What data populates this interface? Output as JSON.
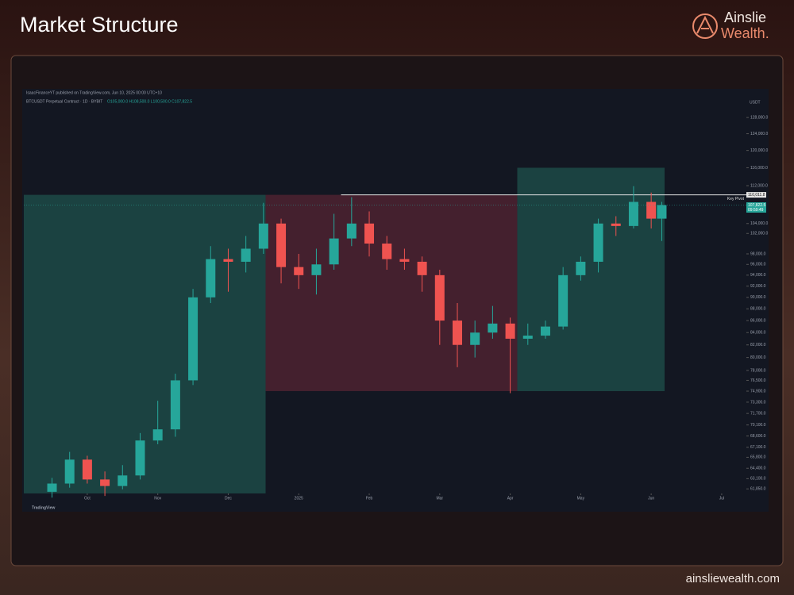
{
  "header": {
    "title": "Market Structure",
    "brand": [
      "Ainslie",
      "Wealth."
    ],
    "footer": "ainsliewealth.com"
  },
  "chart_data": {
    "type": "candlestick",
    "publisher": "IsaacFinanceYT published on TradingView.com, Jun 10, 2025 00:00 UTC+10",
    "symbol": "BTCUSDT Perpetual Contract · 1D · BYBIT",
    "ohlc_line": "O105,000.0 H108,500.0 L100,500.0 C107,822.5",
    "currency": "USDT",
    "watermark": "TradingView",
    "x": [
      0.5,
      0.75,
      1,
      1.25,
      1.5,
      1.75,
      2,
      2.25,
      2.5,
      2.75,
      3,
      3.25,
      3.5,
      3.75,
      4,
      4.25,
      4.5,
      4.75,
      5,
      5.25,
      5.5,
      5.75,
      6,
      6.25,
      6.5,
      6.75,
      7,
      7.25,
      7.5,
      7.75,
      8,
      8.25,
      8.5,
      8.75,
      9,
      9.15
    ],
    "open": [
      61500,
      62500,
      65500,
      63000,
      62200,
      63500,
      68000,
      69500,
      76500,
      90000,
      97000,
      96500,
      99000,
      104000,
      95500,
      94000,
      96000,
      101000,
      104000,
      100000,
      97000,
      96500,
      94000,
      86000,
      82000,
      84000,
      85500,
      83000,
      83500,
      85000,
      94000,
      96500,
      104000,
      103500,
      108500,
      105000
    ],
    "high": [
      63200,
      66500,
      66000,
      64000,
      64800,
      69000,
      73500,
      77500,
      91500,
      99500,
      99000,
      101500,
      108300,
      105000,
      98000,
      99000,
      106000,
      109500,
      106500,
      101500,
      99000,
      97500,
      95000,
      89000,
      86000,
      88500,
      86500,
      85500,
      86000,
      95500,
      97500,
      105000,
      105500,
      111900,
      110500,
      108500
    ],
    "low": [
      60800,
      62000,
      62500,
      61000,
      61800,
      63000,
      67500,
      68500,
      75800,
      89000,
      91000,
      94500,
      98000,
      92500,
      91500,
      90500,
      95000,
      99500,
      97500,
      95000,
      95000,
      91000,
      82000,
      78500,
      80000,
      83000,
      74600,
      82000,
      83000,
      84500,
      93000,
      94500,
      101500,
      103000,
      103000,
      100500
    ],
    "close": [
      62500,
      65500,
      63000,
      62200,
      63500,
      68000,
      69500,
      76500,
      90000,
      97000,
      96500,
      99000,
      104000,
      95500,
      94000,
      96000,
      101000,
      104000,
      100000,
      97000,
      96500,
      94000,
      86000,
      82000,
      84000,
      85500,
      83000,
      83500,
      85000,
      94000,
      96500,
      104000,
      103500,
      108500,
      105000,
      107822.5
    ],
    "up_color": "#26a69a",
    "down_color": "#ef5350",
    "xlim": [
      0.1,
      10.35
    ],
    "xticks": [
      {
        "value": 1,
        "label": "Oct"
      },
      {
        "value": 2,
        "label": "Nov"
      },
      {
        "value": 3,
        "label": "Dec"
      },
      {
        "value": 4,
        "label": "2025"
      },
      {
        "value": 5,
        "label": "Feb"
      },
      {
        "value": 6,
        "label": "Mar"
      },
      {
        "value": 7,
        "label": "Apr"
      },
      {
        "value": 8,
        "label": "May"
      },
      {
        "value": 9,
        "label": "Jun"
      },
      {
        "value": 10,
        "label": "Jul"
      }
    ],
    "ylim": [
      61300,
      133300
    ],
    "log_scale": true,
    "yticks": [
      {
        "value": 128000,
        "label": "128,000.0"
      },
      {
        "value": 124000,
        "label": "124,000.0"
      },
      {
        "value": 120000,
        "label": "120,000.0"
      },
      {
        "value": 116000,
        "label": "116,000.0"
      },
      {
        "value": 112000,
        "label": "112,000.0"
      },
      {
        "value": 104000,
        "label": "104,000.0"
      },
      {
        "value": 102000,
        "label": "102,000.0"
      },
      {
        "value": 98000,
        "label": "98,000.0"
      },
      {
        "value": 96000,
        "label": "96,000.0"
      },
      {
        "value": 94000,
        "label": "94,000.0"
      },
      {
        "value": 92000,
        "label": "92,000.0"
      },
      {
        "value": 90000,
        "label": "90,000.0"
      },
      {
        "value": 88000,
        "label": "88,000.0"
      },
      {
        "value": 86000,
        "label": "86,000.0"
      },
      {
        "value": 84000,
        "label": "84,000.0"
      },
      {
        "value": 82000,
        "label": "82,000.0"
      },
      {
        "value": 80000,
        "label": "80,000.0"
      },
      {
        "value": 78000,
        "label": "78,000.0"
      },
      {
        "value": 76500,
        "label": "76,500.0"
      },
      {
        "value": 74900,
        "label": "74,900.0"
      },
      {
        "value": 73300,
        "label": "73,300.0"
      },
      {
        "value": 71700,
        "label": "71,700.0"
      },
      {
        "value": 70100,
        "label": "70,100.0"
      },
      {
        "value": 68600,
        "label": "68,600.0"
      },
      {
        "value": 67100,
        "label": "67,100.0"
      },
      {
        "value": 65800,
        "label": "65,800.0"
      },
      {
        "value": 64400,
        "label": "64,400.0"
      },
      {
        "value": 63100,
        "label": "63,100.0"
      },
      {
        "value": 61850,
        "label": "61,850.0"
      }
    ],
    "zones": [
      {
        "x": [
          0.1,
          3.53
        ],
        "top": 110011.8,
        "color": "#1d4a47"
      },
      {
        "x": [
          3.53,
          7.1
        ],
        "top": 110011.8,
        "bottom": 74900,
        "color": "#4e2230"
      },
      {
        "x": [
          7.1,
          9.19
        ],
        "top": 116000,
        "bottom": 74900,
        "color": "#1d4a47"
      }
    ],
    "key_pivot": {
      "label": "Key Pivot",
      "value": 110011.8,
      "value_label": "110,011.8",
      "x_start": 4.6
    },
    "last_price": {
      "value": 107822.5,
      "label": "107,822.5",
      "countdown": "09:59:49"
    }
  }
}
